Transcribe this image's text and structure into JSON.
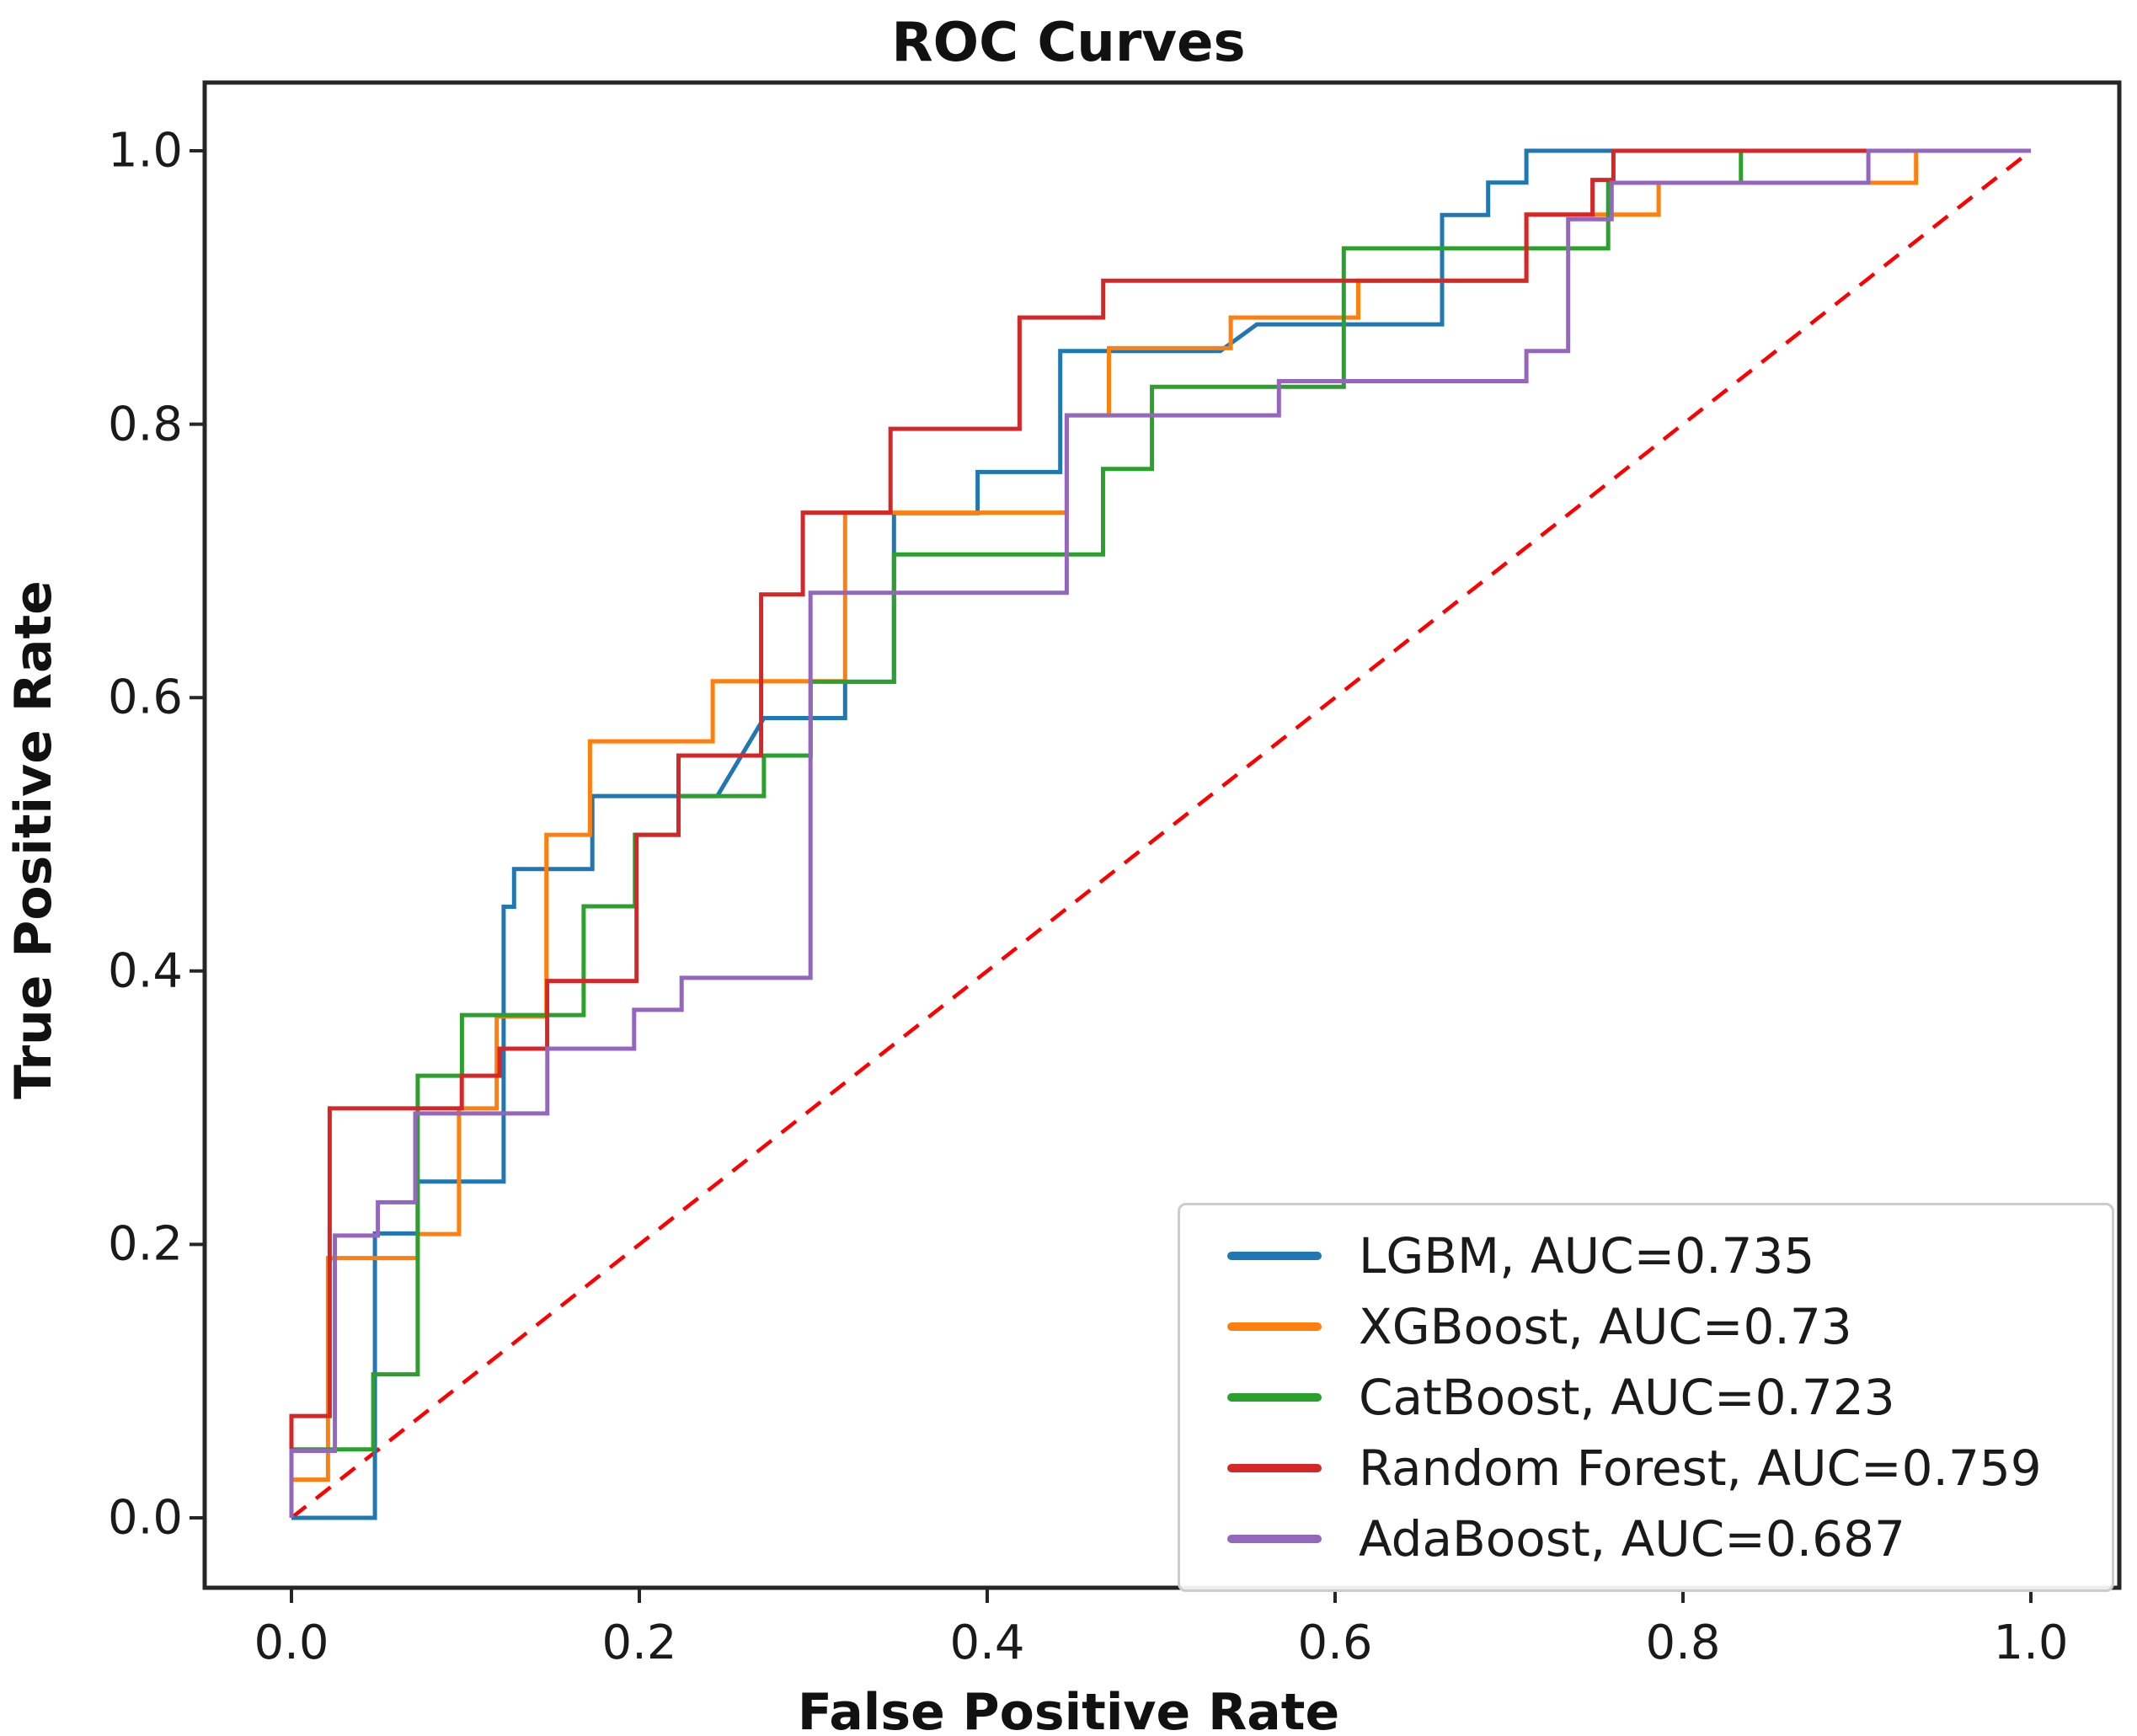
{
  "title": "ROC Curves",
  "axes": {
    "xlabel": "False Positive Rate",
    "ylabel": "True Positive Rate",
    "x_tick_labels": [
      "0.0",
      "0.2",
      "0.4",
      "0.6",
      "0.8",
      "1.0"
    ],
    "y_tick_labels": [
      "0.0",
      "0.2",
      "0.4",
      "0.6",
      "0.8",
      "1.0"
    ],
    "x_tick_values": [
      0,
      0.2,
      0.4,
      0.6,
      0.8,
      1.0
    ],
    "y_tick_values": [
      0,
      0.2,
      0.4,
      0.6,
      0.8,
      1.0
    ]
  },
  "legend": {
    "position": "lower right",
    "entries": [
      {
        "label": "LGBM, AUC=0.735",
        "color": "#1f77b4"
      },
      {
        "label": "XGBoost, AUC=0.73",
        "color": "#ff7f0e"
      },
      {
        "label": "CatBoost, AUC=0.723",
        "color": "#2ca02c"
      },
      {
        "label": "Random Forest, AUC=0.759",
        "color": "#d62728"
      },
      {
        "label": "AdaBoost, AUC=0.687",
        "color": "#9467bd"
      }
    ]
  },
  "chart_data": {
    "type": "line",
    "subtype": "roc-step-curves",
    "title": "ROC Curves",
    "xlabel": "False Positive Rate",
    "ylabel": "True Positive Rate",
    "xlim": [
      -0.05,
      1.05
    ],
    "ylim": [
      -0.05,
      1.05
    ],
    "grid": false,
    "diagonal": {
      "name": "chance line",
      "style": "dashed",
      "color": "#ff0000",
      "from": [
        0,
        0
      ],
      "to": [
        1,
        1
      ]
    },
    "series": [
      {
        "name": "LGBM",
        "auc": 0.735,
        "color": "#1f77b4",
        "points": [
          [
            0,
            0
          ],
          [
            0.048,
            0
          ],
          [
            0.048,
            0.208
          ],
          [
            0.0726,
            0.208
          ],
          [
            0.0726,
            0.246
          ],
          [
            0.122,
            0.246
          ],
          [
            0.122,
            0.447
          ],
          [
            0.128,
            0.447
          ],
          [
            0.128,
            0.4746
          ],
          [
            0.173,
            0.4746
          ],
          [
            0.173,
            0.528
          ],
          [
            0.2448,
            0.528
          ],
          [
            0.2716,
            0.585
          ],
          [
            0.3183,
            0.585
          ],
          [
            0.3183,
            0.6116
          ],
          [
            0.3464,
            0.6116
          ],
          [
            0.3464,
            0.735
          ],
          [
            0.3945,
            0.735
          ],
          [
            0.3945,
            0.765
          ],
          [
            0.442,
            0.765
          ],
          [
            0.442,
            0.8535
          ],
          [
            0.534,
            0.8535
          ],
          [
            0.555,
            0.873
          ],
          [
            0.6615,
            0.873
          ],
          [
            0.6615,
            0.953
          ],
          [
            0.688,
            0.953
          ],
          [
            0.688,
            0.9767
          ],
          [
            0.71,
            0.9767
          ],
          [
            0.71,
            1
          ],
          [
            1,
            1
          ]
        ]
      },
      {
        "name": "XGBoost",
        "auc": 0.73,
        "color": "#ff7f0e",
        "points": [
          [
            0,
            0
          ],
          [
            0,
            0.028
          ],
          [
            0.021,
            0.028
          ],
          [
            0.021,
            0.19
          ],
          [
            0.0726,
            0.19
          ],
          [
            0.0726,
            0.2076
          ],
          [
            0.0963,
            0.2076
          ],
          [
            0.0963,
            0.2995
          ],
          [
            0.118,
            0.2995
          ],
          [
            0.118,
            0.3667
          ],
          [
            0.1466,
            0.3667
          ],
          [
            0.1466,
            0.4996
          ],
          [
            0.1716,
            0.4996
          ],
          [
            0.1716,
            0.568
          ],
          [
            0.2422,
            0.568
          ],
          [
            0.2422,
            0.612
          ],
          [
            0.3183,
            0.612
          ],
          [
            0.3183,
            0.7353
          ],
          [
            0.4457,
            0.7353
          ],
          [
            0.4457,
            0.8065
          ],
          [
            0.47,
            0.8065
          ],
          [
            0.47,
            0.8556
          ],
          [
            0.54,
            0.8556
          ],
          [
            0.54,
            0.878
          ],
          [
            0.6133,
            0.878
          ],
          [
            0.6133,
            0.905
          ],
          [
            0.71,
            0.905
          ],
          [
            0.71,
            0.9533
          ],
          [
            0.786,
            0.9533
          ],
          [
            0.786,
            0.9766
          ],
          [
            0.934,
            0.9766
          ],
          [
            0.934,
            1
          ],
          [
            1,
            1
          ]
        ]
      },
      {
        "name": "CatBoost",
        "auc": 0.723,
        "color": "#2ca02c",
        "points": [
          [
            0,
            0
          ],
          [
            0,
            0.05
          ],
          [
            0.047,
            0.05
          ],
          [
            0.047,
            0.105
          ],
          [
            0.0726,
            0.105
          ],
          [
            0.0726,
            0.3234
          ],
          [
            0.098,
            0.3234
          ],
          [
            0.098,
            0.3678
          ],
          [
            0.168,
            0.3678
          ],
          [
            0.168,
            0.4473
          ],
          [
            0.1975,
            0.4473
          ],
          [
            0.1975,
            0.4996
          ],
          [
            0.2225,
            0.4996
          ],
          [
            0.2225,
            0.528
          ],
          [
            0.2716,
            0.528
          ],
          [
            0.2716,
            0.5576
          ],
          [
            0.2985,
            0.5576
          ],
          [
            0.2985,
            0.6116
          ],
          [
            0.3464,
            0.6116
          ],
          [
            0.3464,
            0.7047
          ],
          [
            0.4666,
            0.7047
          ],
          [
            0.4666,
            0.7673
          ],
          [
            0.4947,
            0.7673
          ],
          [
            0.4947,
            0.8273
          ],
          [
            0.605,
            0.8273
          ],
          [
            0.605,
            0.9286
          ],
          [
            0.757,
            0.9286
          ],
          [
            0.757,
            0.9766
          ],
          [
            0.8333,
            0.9766
          ],
          [
            0.8333,
            1
          ],
          [
            1,
            1
          ]
        ]
      },
      {
        "name": "Random Forest",
        "auc": 0.759,
        "color": "#d62728",
        "points": [
          [
            0,
            0
          ],
          [
            0,
            0.0745
          ],
          [
            0.022,
            0.0745
          ],
          [
            0.022,
            0.2995
          ],
          [
            0.0979,
            0.2995
          ],
          [
            0.0979,
            0.3234
          ],
          [
            0.1196,
            0.3234
          ],
          [
            0.1196,
            0.3432
          ],
          [
            0.147,
            0.3432
          ],
          [
            0.147,
            0.3927
          ],
          [
            0.1984,
            0.3927
          ],
          [
            0.1984,
            0.4996
          ],
          [
            0.2225,
            0.4996
          ],
          [
            0.2225,
            0.5576
          ],
          [
            0.27,
            0.5576
          ],
          [
            0.27,
            0.6754
          ],
          [
            0.294,
            0.6754
          ],
          [
            0.294,
            0.7353
          ],
          [
            0.3444,
            0.7353
          ],
          [
            0.3444,
            0.7966
          ],
          [
            0.4186,
            0.7966
          ],
          [
            0.4186,
            0.878
          ],
          [
            0.4667,
            0.878
          ],
          [
            0.4667,
            0.905
          ],
          [
            0.71,
            0.905
          ],
          [
            0.71,
            0.9533
          ],
          [
            0.748,
            0.9533
          ],
          [
            0.748,
            0.9787
          ],
          [
            0.76,
            0.9787
          ],
          [
            0.76,
            1
          ],
          [
            1,
            1
          ]
        ]
      },
      {
        "name": "AdaBoost",
        "auc": 0.687,
        "color": "#9467bd",
        "points": [
          [
            0,
            0
          ],
          [
            0,
            0.049
          ],
          [
            0.025,
            0.049
          ],
          [
            0.025,
            0.2065
          ],
          [
            0.0497,
            0.2065
          ],
          [
            0.0497,
            0.2308
          ],
          [
            0.0712,
            0.2308
          ],
          [
            0.0712,
            0.2958
          ],
          [
            0.1471,
            0.2958
          ],
          [
            0.1471,
            0.3432
          ],
          [
            0.197,
            0.3432
          ],
          [
            0.197,
            0.3716
          ],
          [
            0.2243,
            0.3716
          ],
          [
            0.2243,
            0.395
          ],
          [
            0.2984,
            0.395
          ],
          [
            0.2984,
            0.6767
          ],
          [
            0.4457,
            0.6767
          ],
          [
            0.4457,
            0.8065
          ],
          [
            0.5677,
            0.8065
          ],
          [
            0.5677,
            0.8315
          ],
          [
            0.71,
            0.8315
          ],
          [
            0.71,
            0.8535
          ],
          [
            0.734,
            0.8535
          ],
          [
            0.734,
            0.95
          ],
          [
            0.759,
            0.95
          ],
          [
            0.759,
            0.9766
          ],
          [
            0.9066,
            0.9766
          ],
          [
            0.9066,
            1
          ],
          [
            1,
            1
          ]
        ]
      }
    ]
  }
}
